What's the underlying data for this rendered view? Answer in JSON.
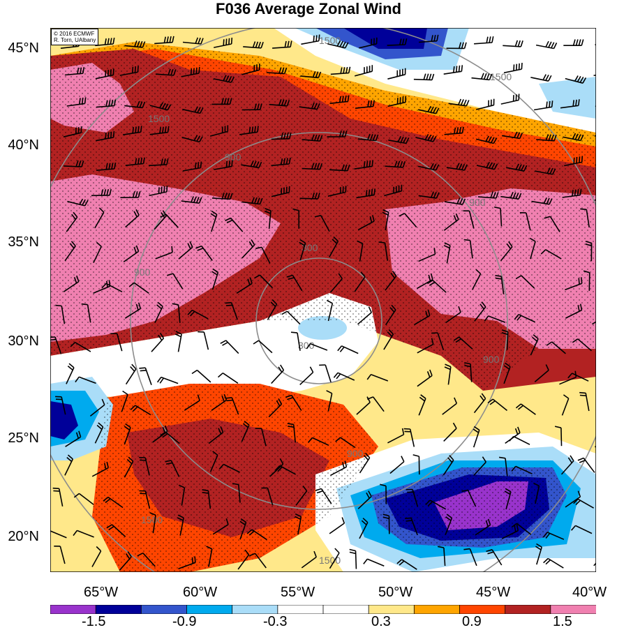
{
  "title": "F036 Average Zonal Wind",
  "credit": [
    "© 2016 ECMWF",
    "R. Torn, UAlbany"
  ],
  "lat_labels": [
    "45°N",
    "40°N",
    "35°N",
    "30°N",
    "25°N",
    "20°N"
  ],
  "lon_labels": [
    "65°W",
    "60°W",
    "55°W",
    "50°W",
    "45°W",
    "40°W"
  ],
  "contour_labels": [
    "300",
    "300",
    "900",
    "900",
    "900",
    "900",
    "900",
    "1500",
    "1500",
    "1500",
    "1500",
    "1500"
  ],
  "colorbar": {
    "colors": [
      "#9933cc",
      "#000099",
      "#3355cc",
      "#00aaee",
      "#aaddf8",
      "#ffffff",
      "#ffffff",
      "#ffe88a",
      "#ffa500",
      "#ff4500",
      "#b22222",
      "#f080b0"
    ],
    "labels": [
      "-1.5",
      "-0.9",
      "-0.3",
      "0.3",
      "0.9",
      "1.5"
    ]
  }
}
